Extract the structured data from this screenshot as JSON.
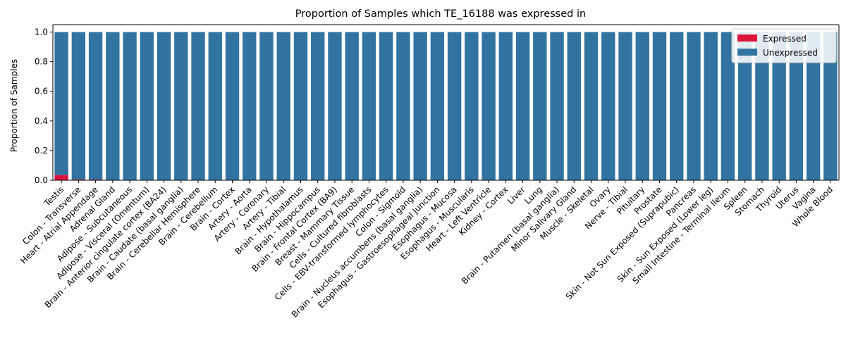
{
  "colors": {
    "expressed": "#dc143c",
    "unexpressed": "#3274a1"
  },
  "chart_data": {
    "type": "bar",
    "stacked": true,
    "title": "Proportion of Samples which TE_16188 was expressed in",
    "xlabel": "",
    "ylabel": "Proportion of Samples",
    "ylim": [
      0,
      1.05
    ],
    "yticks": [
      "0.0",
      "0.2",
      "0.4",
      "0.6",
      "0.8",
      "1.0"
    ],
    "grid": false,
    "legend_position": "top-right",
    "categories": [
      "Testis",
      "Colon - Transverse",
      "Heart - Atrial Appendage",
      "Adrenal Gland",
      "Adipose - Subcutaneous",
      "Adipose - Visceral (Omentum)",
      "Brain - Anterior cingulate cortex (BA24)",
      "Brain - Caudate (basal ganglia)",
      "Brain - Cerebellar Hemisphere",
      "Brain - Cerebellum",
      "Brain - Cortex",
      "Artery - Aorta",
      "Artery - Coronary",
      "Artery - Tibial",
      "Brain - Hypothalamus",
      "Brain - Hippocampus",
      "Brain - Frontal Cortex (BA9)",
      "Breast - Mammary Tissue",
      "Cells - Cultured fibroblasts",
      "Cells - EBV-transformed lymphocytes",
      "Colon - Sigmoid",
      "Brain - Nucleus accumbens (basal ganglia)",
      "Esophagus - Gastroesophageal Junction",
      "Esophagus - Mucosa",
      "Esophagus - Muscularis",
      "Heart - Left Ventricle",
      "Kidney - Cortex",
      "Liver",
      "Lung",
      "Brain - Putamen (basal ganglia)",
      "Minor Salivary Gland",
      "Muscle - Skeletal",
      "Ovary",
      "Nerve - Tibial",
      "Pituitary",
      "Prostate",
      "Skin - Not Sun Exposed (Suprapubic)",
      "Pancreas",
      "Skin - Sun Exposed (Lower leg)",
      "Small Intestine - Terminal Ileum",
      "Spleen",
      "Stomach",
      "Thyroid",
      "Uterus",
      "Vagina",
      "Whole Blood"
    ],
    "series": [
      {
        "name": "Expressed",
        "values": [
          0.035,
          0.006,
          0.005,
          0,
          0,
          0,
          0,
          0,
          0,
          0,
          0,
          0,
          0,
          0,
          0,
          0,
          0,
          0,
          0,
          0,
          0,
          0,
          0,
          0,
          0,
          0,
          0,
          0,
          0,
          0,
          0,
          0,
          0,
          0,
          0,
          0,
          0,
          0,
          0,
          0,
          0,
          0,
          0,
          0,
          0,
          0
        ]
      },
      {
        "name": "Unexpressed",
        "values": [
          0.965,
          0.994,
          0.995,
          1,
          1,
          1,
          1,
          1,
          1,
          1,
          1,
          1,
          1,
          1,
          1,
          1,
          1,
          1,
          1,
          1,
          1,
          1,
          1,
          1,
          1,
          1,
          1,
          1,
          1,
          1,
          1,
          1,
          1,
          1,
          1,
          1,
          1,
          1,
          1,
          1,
          1,
          1,
          1,
          1,
          1,
          1
        ]
      }
    ]
  }
}
